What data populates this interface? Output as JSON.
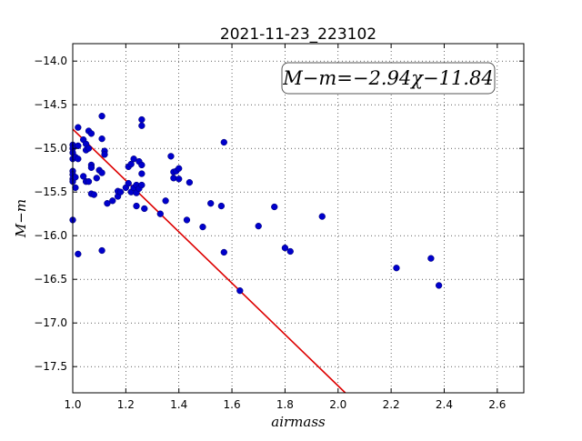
{
  "chart_data": {
    "type": "scatter",
    "title": "2021-11-23_223102",
    "xlabel": "airmass",
    "ylabel": "M−m",
    "xlim": [
      1.0,
      2.7
    ],
    "ylim": [
      -17.8,
      -13.8
    ],
    "y_inverted": false,
    "grid": true,
    "grid_style": "dotted",
    "x_ticks": [
      "1.0",
      "1.2",
      "1.4",
      "1.6",
      "1.8",
      "2.0",
      "2.2",
      "2.4",
      "2.6"
    ],
    "x_tick_values": [
      1.0,
      1.2,
      1.4,
      1.6,
      1.8,
      2.0,
      2.2,
      2.4,
      2.6
    ],
    "y_ticks": [
      "−14.0",
      "−14.5",
      "−15.0",
      "−15.5",
      "−16.0",
      "−16.5",
      "−17.0",
      "−17.5"
    ],
    "y_tick_values": [
      -14.0,
      -14.5,
      -15.0,
      -15.5,
      -16.0,
      -16.5,
      -17.0,
      -17.5
    ],
    "annotation": "M−m=−2.94χ−11.84",
    "colors": {
      "points": "#0000cc",
      "fit_line": "#dd0000"
    },
    "fit_line": {
      "slope": -2.94,
      "intercept": -11.84
    },
    "series": [
      {
        "points": [
          [
            1.0,
            -14.96
          ],
          [
            1.0,
            -15.0
          ],
          [
            1.0,
            -15.05
          ],
          [
            1.0,
            -15.12
          ],
          [
            1.0,
            -15.26
          ],
          [
            1.0,
            -15.3
          ],
          [
            1.0,
            -15.35
          ],
          [
            1.0,
            -15.38
          ],
          [
            1.0,
            -15.82
          ],
          [
            1.01,
            -15.1
          ],
          [
            1.01,
            -15.33
          ],
          [
            1.01,
            -15.45
          ],
          [
            1.02,
            -14.76
          ],
          [
            1.02,
            -14.97
          ],
          [
            1.02,
            -15.12
          ],
          [
            1.02,
            -16.21
          ],
          [
            1.04,
            -14.9
          ],
          [
            1.04,
            -15.32
          ],
          [
            1.05,
            -14.95
          ],
          [
            1.05,
            -15.02
          ],
          [
            1.05,
            -15.38
          ],
          [
            1.06,
            -14.8
          ],
          [
            1.06,
            -15.0
          ],
          [
            1.06,
            -15.38
          ],
          [
            1.07,
            -14.83
          ],
          [
            1.07,
            -15.19
          ],
          [
            1.07,
            -15.22
          ],
          [
            1.07,
            -15.52
          ],
          [
            1.08,
            -15.53
          ],
          [
            1.09,
            -15.34
          ],
          [
            1.1,
            -15.25
          ],
          [
            1.11,
            -14.63
          ],
          [
            1.11,
            -14.89
          ],
          [
            1.11,
            -15.28
          ],
          [
            1.11,
            -16.17
          ],
          [
            1.12,
            -15.03
          ],
          [
            1.12,
            -15.07
          ],
          [
            1.13,
            -15.63
          ],
          [
            1.15,
            -15.6
          ],
          [
            1.17,
            -15.55
          ],
          [
            1.17,
            -15.49
          ],
          [
            1.18,
            -15.5
          ],
          [
            1.2,
            -15.45
          ],
          [
            1.21,
            -15.21
          ],
          [
            1.21,
            -15.4
          ],
          [
            1.22,
            -15.18
          ],
          [
            1.22,
            -15.5
          ],
          [
            1.23,
            -15.12
          ],
          [
            1.23,
            -15.45
          ],
          [
            1.24,
            -15.42
          ],
          [
            1.24,
            -15.51
          ],
          [
            1.24,
            -15.66
          ],
          [
            1.25,
            -15.15
          ],
          [
            1.25,
            -15.46
          ],
          [
            1.26,
            -14.67
          ],
          [
            1.26,
            -14.74
          ],
          [
            1.26,
            -15.19
          ],
          [
            1.26,
            -15.29
          ],
          [
            1.26,
            -15.42
          ],
          [
            1.27,
            -15.69
          ],
          [
            1.33,
            -15.75
          ],
          [
            1.35,
            -15.6
          ],
          [
            1.37,
            -15.09
          ],
          [
            1.38,
            -15.27
          ],
          [
            1.38,
            -15.34
          ],
          [
            1.39,
            -15.26
          ],
          [
            1.4,
            -15.23
          ],
          [
            1.4,
            -15.35
          ],
          [
            1.43,
            -15.82
          ],
          [
            1.44,
            -15.39
          ],
          [
            1.49,
            -15.9
          ],
          [
            1.52,
            -15.63
          ],
          [
            1.56,
            -15.66
          ],
          [
            1.57,
            -14.93
          ],
          [
            1.57,
            -16.19
          ],
          [
            1.63,
            -16.63
          ],
          [
            1.7,
            -15.89
          ],
          [
            1.76,
            -15.67
          ],
          [
            1.8,
            -16.14
          ],
          [
            1.82,
            -16.18
          ],
          [
            1.94,
            -15.78
          ],
          [
            2.22,
            -16.37
          ],
          [
            2.35,
            -16.26
          ],
          [
            2.38,
            -16.57
          ]
        ]
      }
    ]
  }
}
